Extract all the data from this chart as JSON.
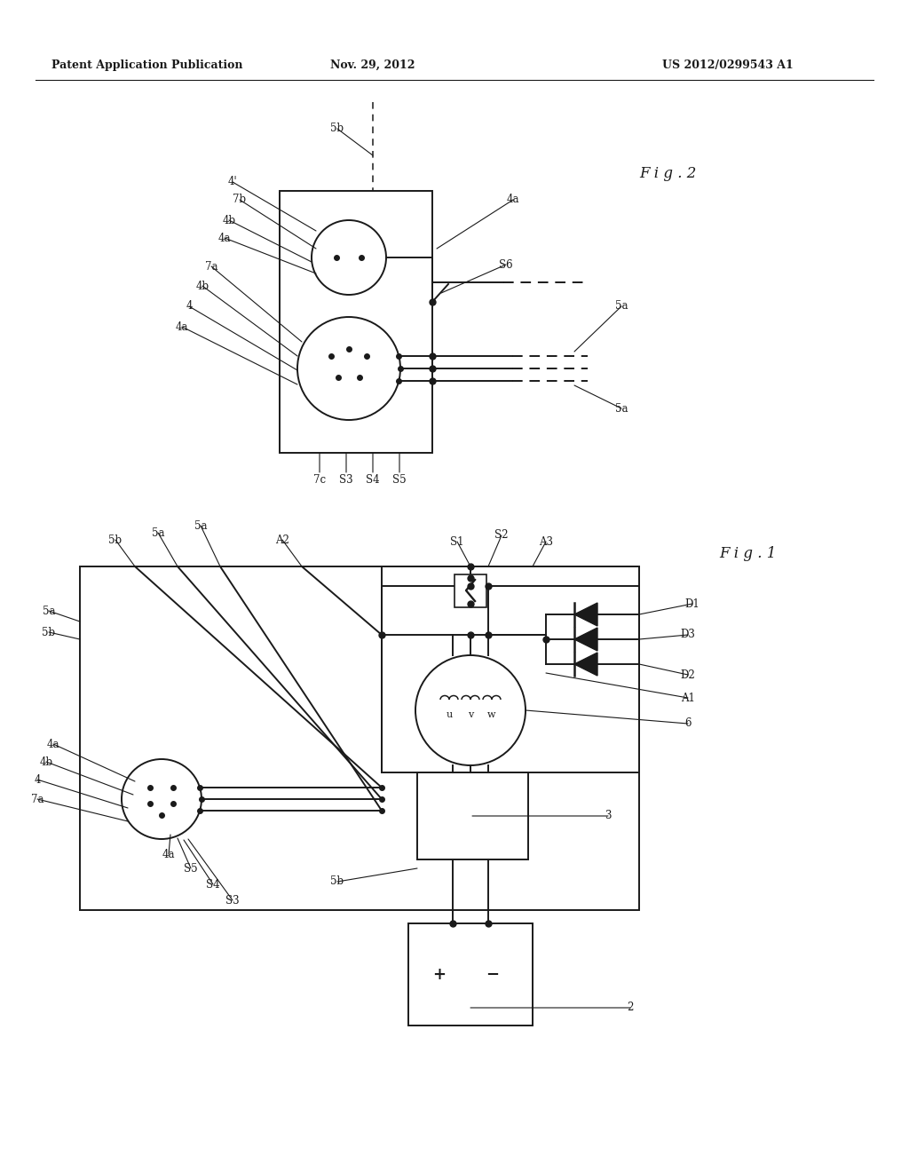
{
  "bg_color": "#ffffff",
  "lc": "#1a1a1a",
  "header_left": "Patent Application Publication",
  "header_center": "Nov. 29, 2012",
  "header_right": "US 2012/0299543 A1",
  "lw": 1.4
}
